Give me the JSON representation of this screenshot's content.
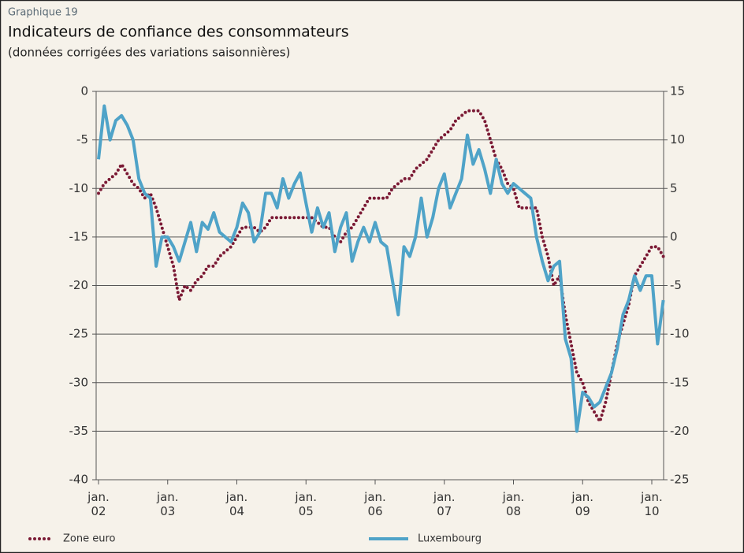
{
  "chart_data": {
    "type": "line",
    "kicker": "Graphique 19",
    "title": "Indicateurs de confiance des consommateurs",
    "subtitle": "(données corrigées des variations saisonnières)",
    "categories": [
      "jan.\n02",
      null,
      null,
      null,
      null,
      null,
      null,
      null,
      null,
      null,
      null,
      null,
      "jan.\n03",
      null,
      null,
      null,
      null,
      null,
      null,
      null,
      null,
      null,
      null,
      null,
      "jan.\n04",
      null,
      null,
      null,
      null,
      null,
      null,
      null,
      null,
      null,
      null,
      null,
      "jan.\n05",
      null,
      null,
      null,
      null,
      null,
      null,
      null,
      null,
      null,
      null,
      null,
      "jan.\n06",
      null,
      null,
      null,
      null,
      null,
      null,
      null,
      null,
      null,
      null,
      null,
      "jan.\n07",
      null,
      null,
      null,
      null,
      null,
      null,
      null,
      null,
      null,
      null,
      null,
      "jan.\n08",
      null,
      null,
      null,
      null,
      null,
      null,
      null,
      null,
      null,
      null,
      null,
      "jan.\n09",
      null,
      null,
      null,
      null,
      null,
      null,
      null,
      null,
      null,
      null,
      null,
      "jan.\n10",
      null,
      null
    ],
    "series": [
      {
        "name": "Zone euro",
        "color": "#7b1a35",
        "style": "dotted",
        "axis": "y",
        "values": [
          -10.5,
          -9.5,
          -9,
          -8.5,
          -7.5,
          -8.5,
          -9.5,
          -10,
          -11,
          -10.5,
          -12,
          -14,
          -16,
          -18,
          -21.5,
          -20,
          -20.5,
          -19.5,
          -19,
          -18,
          -18,
          -17,
          -16.5,
          -16,
          -15,
          -14,
          -14,
          -14,
          -14.5,
          -14,
          -13,
          -13,
          -13,
          -13,
          -13,
          -13,
          -13,
          -13,
          -13.5,
          -14,
          -14,
          -15,
          -15.5,
          -14.5,
          -14,
          -13,
          -12,
          -11,
          -11,
          -11,
          -11,
          -10,
          -9.5,
          -9,
          -9,
          -8,
          -7.5,
          -7,
          -6,
          -5,
          -4.5,
          -4,
          -3,
          -2.5,
          -2,
          -2,
          -2,
          -3,
          -5,
          -7,
          -8,
          -9.5,
          -10,
          -12,
          -12,
          -12,
          -12,
          -15,
          -17,
          -20,
          -19,
          -23,
          -26,
          -29,
          -30,
          -32,
          -33,
          -34,
          -32,
          -29,
          -26,
          -24,
          -22,
          -19,
          -18,
          -17,
          -16,
          -16,
          -17
        ]
      },
      {
        "name": "Luxembourg",
        "color": "#4fa3c8",
        "style": "solid",
        "axis": "y2",
        "values": [
          8,
          13.5,
          10,
          12,
          12.5,
          11.5,
          10,
          6,
          4.5,
          4,
          -3,
          0,
          0,
          -1,
          -2.5,
          -0.5,
          1.5,
          -1.5,
          1.5,
          0.8,
          2.5,
          0.5,
          0,
          -0.5,
          1,
          3.5,
          2.5,
          -0.5,
          0.5,
          4.5,
          4.5,
          3,
          6,
          4,
          5.5,
          6.6,
          3.5,
          0.5,
          3,
          1,
          2.5,
          -1.5,
          1,
          2.5,
          -2.5,
          -0.5,
          1,
          -0.5,
          1.5,
          -0.5,
          -1,
          -4.5,
          -8,
          -1,
          -2,
          0,
          4,
          0,
          2,
          5,
          6.5,
          3,
          4.5,
          6,
          10.5,
          7.5,
          9,
          7,
          4.5,
          8,
          5.5,
          4.5,
          5.5,
          5,
          4.5,
          4,
          0,
          -2.5,
          -4.5,
          -3,
          -2.5,
          -10.5,
          -12.5,
          -20,
          -16,
          -16.5,
          -17.5,
          -17,
          -15.5,
          -14,
          -11.5,
          -8,
          -6.5,
          -4,
          -5.5,
          -4,
          -4,
          -11,
          -6.5
        ]
      }
    ],
    "ylim": [
      -40,
      0
    ],
    "yticks": [
      0,
      -5,
      -10,
      -15,
      -20,
      -25,
      -30,
      -35,
      -40
    ],
    "y2lim": [
      -25,
      15
    ],
    "y2ticks": [
      15,
      10,
      5,
      0,
      -5,
      -10,
      -15,
      -20,
      -25
    ],
    "grid": true,
    "legend": "bottom"
  }
}
